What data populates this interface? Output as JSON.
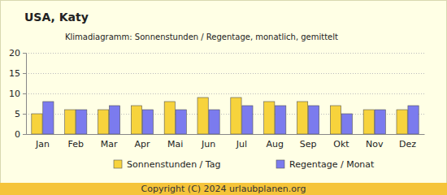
{
  "chart_data": {
    "type": "bar",
    "title": "USA, Katy",
    "subtitle": "Klimadiagramm: Sonnenstunden / Regentage, monatlich, gemittelt",
    "categories": [
      "Jan",
      "Feb",
      "Mar",
      "Apr",
      "Mai",
      "Jun",
      "Jul",
      "Aug",
      "Sep",
      "Okt",
      "Nov",
      "Dez"
    ],
    "series": [
      {
        "name": "Sonnenstunden / Tag",
        "color": "#f7d33c",
        "values": [
          5,
          6,
          6,
          7,
          8,
          9,
          9,
          8,
          8,
          7,
          6,
          6
        ]
      },
      {
        "name": "Regentage / Monat",
        "color": "#7b7bee",
        "values": [
          8,
          6,
          7,
          6,
          6,
          6,
          7,
          7,
          7,
          5,
          6,
          7
        ]
      }
    ],
    "ylim": [
      0,
      20
    ],
    "yticks": [
      0,
      5,
      10,
      15,
      20
    ],
    "grid": true,
    "legend": "bottom",
    "annotations": [
      "Copyright (C) 2024 urlaubplanen.org"
    ]
  }
}
